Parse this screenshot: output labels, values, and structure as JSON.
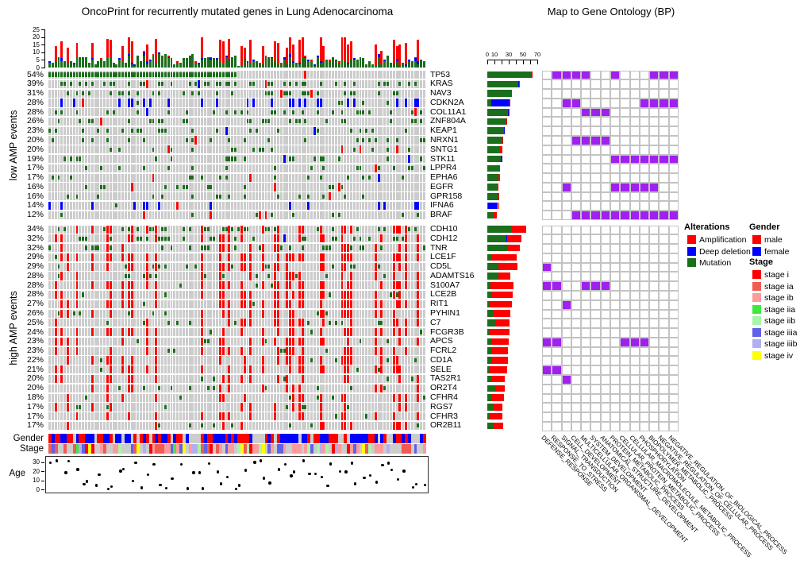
{
  "title": "OncoPrint for recurrently mutated genes in Lung Adenocarcinoma",
  "annotations": {
    "gender_label": "Gender",
    "stage_label": "Stage",
    "age_label": "Age",
    "age_ticks": [
      0,
      10,
      20,
      30
    ]
  },
  "legend": {
    "alterations": {
      "title": "Alterations",
      "items": [
        {
          "label": "Amplification",
          "color": "#FF0000"
        },
        {
          "label": "Deep deletion",
          "color": "#0000FF"
        },
        {
          "label": "Mutation",
          "color": "#1B6E1B"
        }
      ]
    },
    "gender": {
      "title": "Gender",
      "items": [
        {
          "label": "male",
          "color": "#FF0000"
        },
        {
          "label": "female",
          "color": "#0000FF"
        }
      ]
    },
    "stage": {
      "title": "Stage",
      "items": [
        {
          "label": "stage i",
          "color": "#FF0000"
        },
        {
          "label": "stage ia",
          "color": "#F25B50"
        },
        {
          "label": "stage ib",
          "color": "#FC9B9B"
        },
        {
          "label": "stage iia",
          "color": "#3FE83F"
        },
        {
          "label": "stage iib",
          "color": "#A9F5A9"
        },
        {
          "label": "stage iiia",
          "color": "#6161E8"
        },
        {
          "label": "stage iiib",
          "color": "#B0B0F0"
        },
        {
          "label": "stage iv",
          "color": "#FFFF00"
        }
      ]
    }
  },
  "colors": {
    "background_cell": "#CCCCCC",
    "amplification": "#FF0000",
    "deep_deletion": "#0000FF",
    "mutation": "#1B6E1B",
    "go_hit": "#A020F0",
    "na": "#CCCCCC"
  },
  "samples": {
    "count": 124,
    "seed": 20,
    "stripe_pool": 40,
    "gender_weights": {
      "male": 0.38,
      "female": 0.34,
      "na": 0.28
    },
    "stage_weights": {
      "na": 0.26,
      "stage i": 0.05,
      "stage ia": 0.13,
      "stage ib": 0.2,
      "stage iia": 0.06,
      "stage iib": 0.07,
      "stage iiia": 0.09,
      "stage iiib": 0.09,
      "stage iv": 0.05
    },
    "age_range": [
      2,
      34
    ]
  },
  "chart_data": {
    "type": "oncoprint",
    "title": "OncoPrint for recurrently mutated genes in Lung Adenocarcinoma",
    "top_bar_chart": {
      "type": "bar",
      "stacked": true,
      "description": "per-sample alteration counts stacked as mutation (green), deep deletion (blue), amplification (red)",
      "yticks": [
        0,
        5,
        10,
        15,
        20,
        25
      ],
      "ylim": [
        0,
        25
      ]
    },
    "right_bar_chart": {
      "type": "bar",
      "stacked": true,
      "description": "per-gene alteration counts: mutation (green), deep deletion (blue), amplification (red)",
      "xticks": [
        0,
        10,
        20,
        30,
        40,
        50,
        60,
        70
      ],
      "xtick_labels_shown": [
        "0",
        "10",
        "30",
        "50",
        "70"
      ],
      "xlim": [
        0,
        70
      ]
    },
    "gene_groups": [
      {
        "label": "low AMP events",
        "genes": [
          {
            "name": "TP53",
            "pct": "54%",
            "mut": 62,
            "del": 0,
            "amp": 1
          },
          {
            "name": "KRAS",
            "pct": "39%",
            "mut": 43,
            "del": 1,
            "amp": 2
          },
          {
            "name": "NAV3",
            "pct": "31%",
            "mut": 33,
            "del": 0,
            "amp": 2
          },
          {
            "name": "CDKN2A",
            "pct": "28%",
            "mut": 6,
            "del": 25,
            "amp": 1
          },
          {
            "name": "COL11A1",
            "pct": "28%",
            "mut": 29,
            "del": 1,
            "amp": 1
          },
          {
            "name": "ZNF804A",
            "pct": "26%",
            "mut": 27,
            "del": 0,
            "amp": 1
          },
          {
            "name": "KEAP1",
            "pct": "23%",
            "mut": 23,
            "del": 2,
            "amp": 0
          },
          {
            "name": "NRXN1",
            "pct": "20%",
            "mut": 21,
            "del": 0,
            "amp": 1
          },
          {
            "name": "SNTG1",
            "pct": "20%",
            "mut": 17,
            "del": 0,
            "amp": 4
          },
          {
            "name": "STK11",
            "pct": "19%",
            "mut": 19,
            "del": 2,
            "amp": 0
          },
          {
            "name": "LPPR4",
            "pct": "17%",
            "mut": 17,
            "del": 0,
            "amp": 1
          },
          {
            "name": "EPHA6",
            "pct": "17%",
            "mut": 15,
            "del": 1,
            "amp": 2
          },
          {
            "name": "EGFR",
            "pct": "16%",
            "mut": 13,
            "del": 0,
            "amp": 3
          },
          {
            "name": "GPR158",
            "pct": "16%",
            "mut": 16,
            "del": 0,
            "amp": 1
          },
          {
            "name": "IFNA6",
            "pct": "14%",
            "mut": 1,
            "del": 14,
            "amp": 1
          },
          {
            "name": "BRAF",
            "pct": "12%",
            "mut": 9,
            "del": 0,
            "amp": 4
          }
        ]
      },
      {
        "label": "high AMP events",
        "genes": [
          {
            "name": "CDH10",
            "pct": "34%",
            "mut": 33,
            "del": 0,
            "amp": 22
          },
          {
            "name": "CDH12",
            "pct": "32%",
            "mut": 27,
            "del": 1,
            "amp": 20
          },
          {
            "name": "TNR",
            "pct": "32%",
            "mut": 29,
            "del": 0,
            "amp": 17
          },
          {
            "name": "LCE1F",
            "pct": "29%",
            "mut": 5,
            "del": 0,
            "amp": 36
          },
          {
            "name": "CD5L",
            "pct": "29%",
            "mut": 16,
            "del": 0,
            "amp": 26
          },
          {
            "name": "ADAMTS16",
            "pct": "28%",
            "mut": 15,
            "del": 0,
            "amp": 17
          },
          {
            "name": "S100A7",
            "pct": "28%",
            "mut": 4,
            "del": 0,
            "amp": 33
          },
          {
            "name": "LCE2B",
            "pct": "28%",
            "mut": 5,
            "del": 0,
            "amp": 30
          },
          {
            "name": "RIT1",
            "pct": "27%",
            "mut": 2,
            "del": 0,
            "amp": 33
          },
          {
            "name": "PYHIN1",
            "pct": "26%",
            "mut": 8,
            "del": 0,
            "amp": 24
          },
          {
            "name": "C7",
            "pct": "25%",
            "mut": 12,
            "del": 0,
            "amp": 19
          },
          {
            "name": "FCGR3B",
            "pct": "24%",
            "mut": 3,
            "del": 0,
            "amp": 28
          },
          {
            "name": "APCS",
            "pct": "23%",
            "mut": 6,
            "del": 0,
            "amp": 24
          },
          {
            "name": "FCRL2",
            "pct": "23%",
            "mut": 5,
            "del": 0,
            "amp": 24
          },
          {
            "name": "CD1A",
            "pct": "22%",
            "mut": 6,
            "del": 0,
            "amp": 23
          },
          {
            "name": "SELE",
            "pct": "21%",
            "mut": 3,
            "del": 0,
            "amp": 25
          },
          {
            "name": "TAS2R1",
            "pct": "20%",
            "mut": 6,
            "del": 0,
            "amp": 19
          },
          {
            "name": "OR2T4",
            "pct": "20%",
            "mut": 12,
            "del": 0,
            "amp": 13
          },
          {
            "name": "CFHR4",
            "pct": "18%",
            "mut": 6,
            "del": 0,
            "amp": 17
          },
          {
            "name": "RGS7",
            "pct": "17%",
            "mut": 8,
            "del": 0,
            "amp": 13
          },
          {
            "name": "CFHR3",
            "pct": "17%",
            "mut": 3,
            "del": 0,
            "amp": 18
          },
          {
            "name": "OR2B11",
            "pct": "17%",
            "mut": 9,
            "del": 0,
            "amp": 13
          }
        ]
      }
    ],
    "go_matrix": {
      "type": "heatmap",
      "title": "Map to Gene Ontology (BP)",
      "hit_color": "#A020F0",
      "columns": [
        "DEFENSE_RESPONSE",
        "RESPONSE_TO_STRESS",
        "SIGNAL_TRANSDUCTION",
        "CELL_DEVELOPMENT",
        "MULTICELLULAR_ORGANISMAL_DEVELOPMENT",
        "SYSTEM_DEVELOPMENT",
        "ANATOMICAL_STRUCTURE_DEVELOPMENT",
        "PROTEIN_METABOLIC_PROCESS",
        "CELLULAR_PROTEIN_METABOLIC_PROCESS",
        "CELLULAR_MACROMOLECULE_METABOLIC_PROCESS",
        "PHOSPHORYLATION",
        "BIOPOLYMER_METABOLIC_PROCESS",
        "NEGATIVE_REGULATION_OF_CELLULAR_PROCESS",
        "NEGATIVE_REGULATION_OF_BIOLOGICAL_PROCESS"
      ],
      "hits": {
        "TP53": [
          2,
          3,
          4,
          5,
          8,
          12,
          13,
          14
        ],
        "CDKN2A": [
          3,
          4,
          11,
          12,
          13,
          14
        ],
        "COL11A1": [
          5,
          6,
          7
        ],
        "NRXN1": [
          4,
          5,
          6,
          7
        ],
        "STK11": [
          8,
          9,
          10,
          11,
          12,
          13,
          14
        ],
        "EGFR": [
          3,
          8,
          9,
          10,
          11,
          12
        ],
        "BRAF": [
          4,
          5,
          6,
          7,
          8,
          9,
          10,
          11,
          12,
          13,
          14
        ],
        "CD5L": [
          1
        ],
        "S100A7": [
          1,
          2,
          5,
          6,
          7
        ],
        "RIT1": [
          3
        ],
        "APCS": [
          1,
          2,
          9,
          10,
          11
        ],
        "SELE": [
          1,
          2
        ],
        "TAS2R1": [
          3
        ]
      }
    },
    "age_scatter": {
      "type": "scatter",
      "yticks": [
        0,
        10,
        20,
        30
      ],
      "ylim": [
        0,
        36
      ]
    }
  }
}
